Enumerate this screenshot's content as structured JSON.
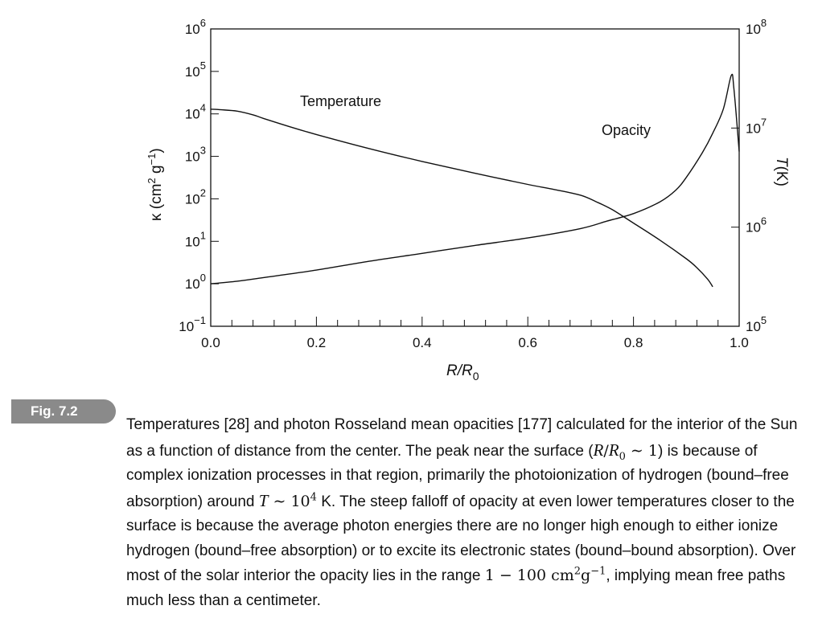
{
  "chart_data": {
    "type": "line",
    "xlabel": "R/R",
    "xlabel_sub": "0",
    "ylabel_left": "κ (cm",
    "ylabel_left_sup1": "2",
    "ylabel_left_mid": " g",
    "ylabel_left_sup2": "−1",
    "ylabel_left_end": ")",
    "ylabel_right": "T(K)",
    "xlim": [
      0.0,
      1.0
    ],
    "ylim_left_log10": [
      -1,
      6
    ],
    "ylim_right_log10": [
      5,
      8
    ],
    "yscale": "log",
    "x_ticks": [
      "0.0",
      "0.2",
      "0.4",
      "0.6",
      "0.8",
      "1.0"
    ],
    "y_left_tick_exponents": [
      "6",
      "5",
      "4",
      "3",
      "2",
      "1",
      "0",
      "-1"
    ],
    "y_right_tick_exponents": [
      "8",
      "7",
      "6",
      "5"
    ],
    "tick_base": "10",
    "series": [
      {
        "name": "Temperature",
        "axis": "right",
        "x": [
          0.0,
          0.02,
          0.05,
          0.08,
          0.1,
          0.15,
          0.2,
          0.3,
          0.4,
          0.5,
          0.6,
          0.65,
          0.7,
          0.73,
          0.76,
          0.8,
          0.85,
          0.9,
          0.92,
          0.94,
          0.95
        ],
        "y": [
          15500000,
          15300000,
          14800000,
          13600000,
          12500000,
          10300000,
          8600000,
          6200000,
          4600000,
          3500000,
          2700000,
          2400000,
          2100000,
          1800000,
          1500000,
          1100000,
          740000,
          480000,
          390000,
          300000,
          250000
        ]
      },
      {
        "name": "Opacity",
        "axis": "left",
        "x": [
          0.0,
          0.05,
          0.1,
          0.2,
          0.3,
          0.4,
          0.5,
          0.6,
          0.7,
          0.75,
          0.8,
          0.85,
          0.88,
          0.9,
          0.93,
          0.95,
          0.97,
          0.985,
          0.99,
          1.0
        ],
        "y": [
          1.0,
          1.15,
          1.4,
          2.1,
          3.4,
          5.2,
          8.0,
          12.0,
          20.0,
          30.0,
          45.0,
          85.0,
          160.0,
          320.0,
          1200.0,
          3500.0,
          13000.0,
          80000.0,
          40000.0,
          1300.0
        ]
      }
    ],
    "annotations": [
      "Temperature",
      "Opacity"
    ],
    "grid": false,
    "legend": "none"
  },
  "figure": {
    "label": "Fig. 7.2",
    "caption_1": "Temperatures [28] and photon Rosseland mean opacities [177] calculated for the interior of the Sun as a function of distance from the center. The peak near the surface (",
    "caption_math_1a": "R",
    "caption_math_1b": "/",
    "caption_math_1c": "R",
    "caption_math_1c_sub": "0",
    "caption_math_1d": " ∼ 1",
    "caption_2": ") is because of complex ionization processes in that region, primarily the photoionization of hydrogen (bound–free absorption) around ",
    "caption_math_2a": "T",
    "caption_math_2b": " ∼ 10",
    "caption_math_2b_sup": "4",
    "caption_3": " K. The steep falloff of opacity at even lower temperatures closer to the surface is because the average photon energies there are no longer high enough to either ionize hydrogen (bound–free absorption) or to excite its electronic states (bound–bound absorption). Over most of the solar interior the opacity lies in the range ",
    "caption_math_3": "1 − 100 cm",
    "caption_math_3_sup1": "2",
    "caption_math_3_mid": "g",
    "caption_math_3_sup2": "−1",
    "caption_4": ", implying mean free paths much less than a centimeter."
  }
}
